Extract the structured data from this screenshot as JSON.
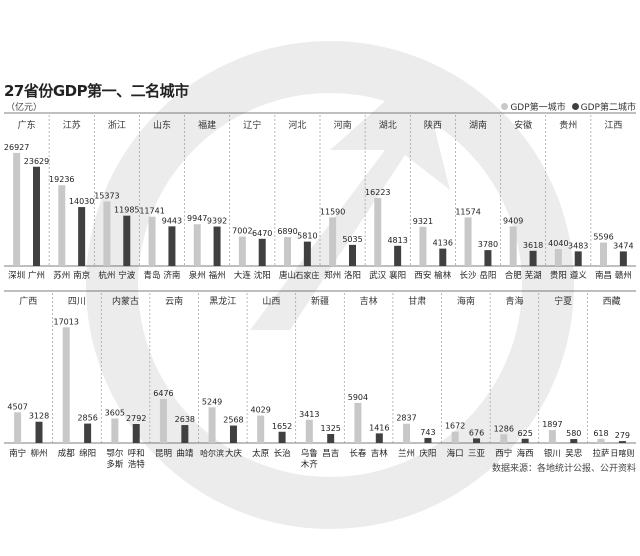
{
  "title": "27省份GDP第一、二名城市",
  "unit": "（亿元）",
  "source": "数据来源：各地统计公报、公开资料",
  "legend": [
    {
      "label": "GDP第一城市",
      "color": "#c8c8c8"
    },
    {
      "label": "GDP第二城市",
      "color": "#404040"
    }
  ],
  "chart_data": {
    "type": "bar",
    "title": "27省份GDP第一、二名城市",
    "ylabel": "（亿元）",
    "series": [
      {
        "name": "GDP第一城市"
      },
      {
        "name": "GDP第二城市"
      }
    ],
    "rows": [
      [
        {
          "province": "广东",
          "cities": [
            "深圳",
            "广州"
          ],
          "values": [
            26927,
            23629
          ]
        },
        {
          "province": "江苏",
          "cities": [
            "苏州",
            "南京"
          ],
          "values": [
            19236,
            14030
          ]
        },
        {
          "province": "浙江",
          "cities": [
            "杭州",
            "宁波"
          ],
          "values": [
            15373,
            11985
          ]
        },
        {
          "province": "山东",
          "cities": [
            "青岛",
            "济南"
          ],
          "values": [
            11741,
            9443
          ]
        },
        {
          "province": "福建",
          "cities": [
            "泉州",
            "福州"
          ],
          "values": [
            9947,
            9392
          ]
        },
        {
          "province": "辽宁",
          "cities": [
            "大连",
            "沈阳"
          ],
          "values": [
            7002,
            6470
          ]
        },
        {
          "province": "河北",
          "cities": [
            "唐山",
            "石家庄"
          ],
          "values": [
            6890,
            5810
          ]
        },
        {
          "province": "河南",
          "cities": [
            "郑州",
            "洛阳"
          ],
          "values": [
            11590,
            5035
          ]
        },
        {
          "province": "湖北",
          "cities": [
            "武汉",
            "襄阳"
          ],
          "values": [
            16223,
            4813
          ]
        },
        {
          "province": "陕西",
          "cities": [
            "西安",
            "榆林"
          ],
          "values": [
            9321,
            4136
          ]
        },
        {
          "province": "湖南",
          "cities": [
            "长沙",
            "岳阳"
          ],
          "values": [
            11574,
            3780
          ]
        },
        {
          "province": "安徽",
          "cities": [
            "合肥",
            "芜湖"
          ],
          "values": [
            9409,
            3618
          ]
        },
        {
          "province": "贵州",
          "cities": [
            "贵阳",
            "遵义"
          ],
          "values": [
            4040,
            3483
          ]
        },
        {
          "province": "江西",
          "cities": [
            "南昌",
            "赣州"
          ],
          "values": [
            5596,
            3474
          ]
        }
      ],
      [
        {
          "province": "广西",
          "cities": [
            "南宁",
            "柳州"
          ],
          "values": [
            4507,
            3128
          ]
        },
        {
          "province": "四川",
          "cities": [
            "成都",
            "绵阳"
          ],
          "values": [
            17013,
            2856
          ]
        },
        {
          "province": "内蒙古",
          "cities": [
            "鄂尔多斯",
            "呼和浩特"
          ],
          "values": [
            3605,
            2792
          ]
        },
        {
          "province": "云南",
          "cities": [
            "昆明",
            "曲靖"
          ],
          "values": [
            6476,
            2638
          ]
        },
        {
          "province": "黑龙江",
          "cities": [
            "哈尔滨",
            "大庆"
          ],
          "values": [
            5249,
            2568
          ]
        },
        {
          "province": "山西",
          "cities": [
            "太原",
            "长治"
          ],
          "values": [
            4029,
            1652
          ]
        },
        {
          "province": "新疆",
          "cities": [
            "乌鲁木齐",
            "昌吉"
          ],
          "values": [
            3413,
            1325
          ]
        },
        {
          "province": "吉林",
          "cities": [
            "长春",
            "吉林"
          ],
          "values": [
            5904,
            1416
          ]
        },
        {
          "province": "甘肃",
          "cities": [
            "兰州",
            "庆阳"
          ],
          "values": [
            2837,
            743
          ]
        },
        {
          "province": "海南",
          "cities": [
            "海口",
            "三亚"
          ],
          "values": [
            1672,
            676
          ]
        },
        {
          "province": "青海",
          "cities": [
            "西宁",
            "海西"
          ],
          "values": [
            1286,
            625
          ]
        },
        {
          "province": "宁夏",
          "cities": [
            "银川",
            "吴忠"
          ],
          "values": [
            1897,
            580
          ]
        },
        {
          "province": "西藏",
          "cities": [
            "拉萨",
            "日喀则"
          ],
          "values": [
            618,
            279
          ]
        }
      ]
    ]
  }
}
